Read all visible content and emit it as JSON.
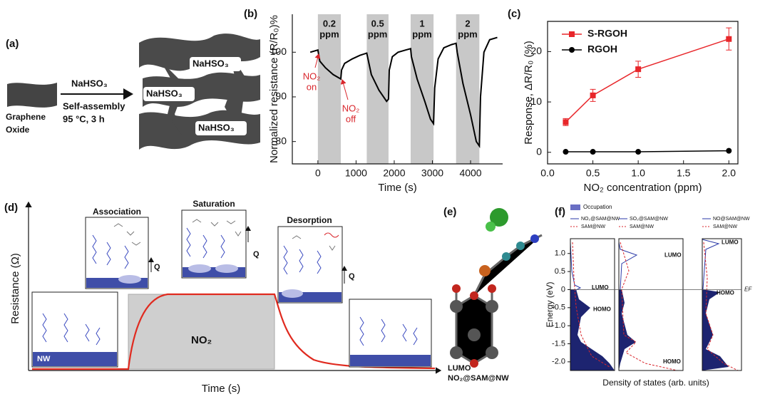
{
  "panels": {
    "a": "(a)",
    "b": "(b)",
    "c": "(c)",
    "d": "(d)",
    "e": "(e)",
    "f": "(f)"
  },
  "scheme_a": {
    "reagent": "NaHSO₃",
    "conditions": [
      "Self-assembly",
      "95 °C, 3 h"
    ],
    "start": [
      "Graphene",
      "Oxide"
    ],
    "product_labels": [
      "NaHSO₃",
      "NaHSO₃",
      "NaHSO₃"
    ]
  },
  "chart_data": [
    {
      "type": "line",
      "y_label": "Normalized resistance (R/R₀)%",
      "x_label": "Time (s)",
      "xlim": [
        -670,
        4840
      ],
      "ylim": [
        75,
        108.5
      ],
      "xticks": [
        0,
        1000,
        2000,
        3000,
        4000
      ],
      "yticks": [
        80,
        90,
        100
      ],
      "bands": [
        {
          "start": 0,
          "end": 600,
          "label": "0.2"
        },
        {
          "start": 1280,
          "end": 1850,
          "label": "0.5"
        },
        {
          "start": 2430,
          "end": 3030,
          "label": "1"
        },
        {
          "start": 3620,
          "end": 4230,
          "label": "2"
        }
      ],
      "band_unit": "ppm",
      "band_color": "#c8c8c8",
      "annotation_color": "#d9262c",
      "annotations": [
        [
          "NO₂",
          "on"
        ],
        [
          "NO₂",
          "off"
        ]
      ],
      "series": [
        {
          "color": "#000000",
          "x": [
            -200,
            0,
            50,
            200,
            400,
            600,
            620,
            700,
            900,
            1100,
            1280,
            1300,
            1400,
            1600,
            1800,
            1850,
            1870,
            1950,
            2100,
            2300,
            2430,
            2450,
            2600,
            2800,
            2950,
            3030,
            3060,
            3150,
            3300,
            3500,
            3620,
            3650,
            3800,
            4000,
            4150,
            4230,
            4260,
            4350,
            4500,
            4700
          ],
          "values": [
            100,
            100.5,
            98,
            96.5,
            95,
            94,
            96,
            97.5,
            98.5,
            99.3,
            99.8,
            99,
            95,
            91.5,
            89,
            89.5,
            96,
            99,
            100,
            100.5,
            100.8,
            99,
            94,
            89,
            85,
            84,
            92,
            98.5,
            101,
            101.7,
            102,
            100,
            93,
            86,
            80,
            79,
            90,
            100,
            102.8,
            103.3
          ]
        }
      ]
    },
    {
      "type": "line",
      "x_label": "NO₂ concentration (ppm)",
      "y_label": "Response, ΔR/R₀ (%)",
      "x": [
        0.2,
        0.5,
        1,
        2
      ],
      "xlim": [
        0,
        2.1
      ],
      "ylim": [
        -2.3,
        26
      ],
      "xticks": [
        {
          "value": 0,
          "label": "0.0"
        },
        0.5,
        {
          "value": 1,
          "label": "1.0"
        },
        1.5,
        {
          "value": 2,
          "label": "2.0"
        }
      ],
      "yticks": [
        0,
        10,
        20
      ],
      "legend": "upper left",
      "series": [
        {
          "name": "S-RGOH",
          "color": "#e8262a",
          "marker": "square",
          "values": [
            6,
            11.3,
            16.5,
            22.5
          ],
          "errors": [
            0.7,
            1.2,
            1.6,
            2.2
          ]
        },
        {
          "name": "RGOH",
          "color": "#000000",
          "marker": "circle",
          "values": [
            0.1,
            0.1,
            0.1,
            0.3
          ]
        }
      ]
    },
    {
      "type": "dos",
      "y_label": "Energy (eV)",
      "x_label": "Density of states (arb. units)",
      "ylim": [
        -2.24,
        1.41
      ],
      "yticks": [
        {
          "value": 1,
          "label": "1.0"
        },
        0.5,
        0,
        -0.5,
        {
          "value": -1,
          "label": "-1.0"
        },
        -1.5,
        {
          "value": -2,
          "label": "-2.0"
        }
      ],
      "fermi_level": 0,
      "fermi_label": "EF",
      "occupation": {
        "name": "Occupation",
        "color": "#6a6fc4"
      },
      "line_colors": [
        "#2b3aa8",
        "#d9262c"
      ],
      "panels": [
        {
          "series": [
            "NO₂@SAM@NW",
            "SAM@NW"
          ],
          "annotations": [
            {
              "text": "LUMO",
              "value": 0.05
            },
            {
              "text": "HOMO",
              "value": -0.55
            }
          ]
        },
        {
          "series": [
            "SO₂@SAM@NW",
            "SAM@NW"
          ],
          "annotations": [
            {
              "text": "LUMO",
              "value": 0.95
            },
            {
              "text": "HOMO",
              "value": -2.0
            }
          ]
        },
        {
          "series": [
            "NO@SAM@NW",
            "SAM@NW"
          ],
          "annotations": [
            {
              "text": "LUMO",
              "value": 1.3
            },
            {
              "text": "HOMO",
              "value": -0.1
            }
          ]
        }
      ]
    }
  ],
  "scheme_d": {
    "y_label": "Resistance (Ω)",
    "x_label": "Time (s)",
    "gas": "NO₂",
    "stages": [
      "Association",
      "Saturation",
      "Desorption"
    ],
    "heat": "Q",
    "substrate": "NW"
  },
  "molecule_e": {
    "orbital": "LUMO",
    "system": "NO₂@SAM@NW"
  }
}
